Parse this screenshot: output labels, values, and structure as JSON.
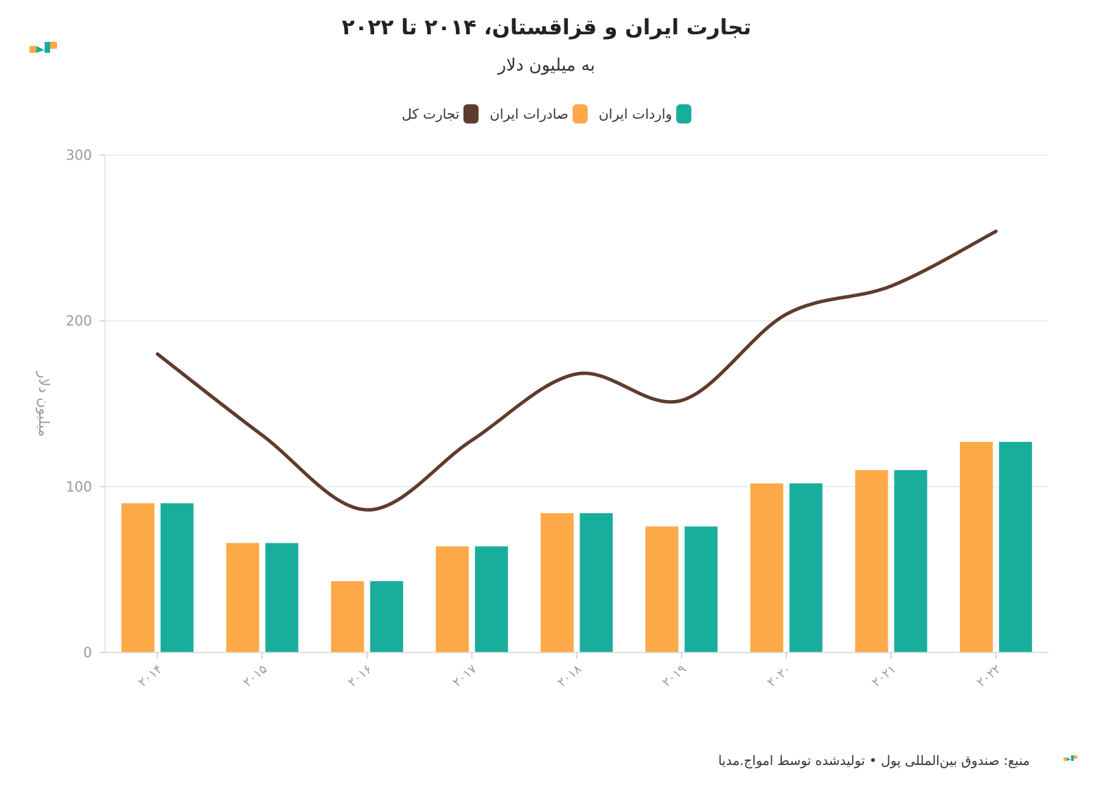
{
  "header": {
    "title": "تجارت ایران و قزاقستان، ۲۰۱۴ تا ۲۰۲۲",
    "subtitle": "به میلیون دلار"
  },
  "legend": [
    {
      "label": "واردات ایران",
      "color": "#19ae9c"
    },
    {
      "label": "صادرات ایران",
      "color": "#fea947"
    },
    {
      "label": "تجارت کل",
      "color": "#5e3c2d"
    }
  ],
  "footer": {
    "source": "منبع: صندوق بین‌المللی پول • تولیدشده توسط امواج.مدیا"
  },
  "chart_data": {
    "type": "bar",
    "categories": [
      "۲۰۱۴",
      "۲۰۱۵",
      "۲۰۱۶",
      "۲۰۱۷",
      "۲۰۱۸",
      "۲۰۱۹",
      "۲۰۲۰",
      "۲۰۲۱",
      "۲۰۲۲"
    ],
    "series": [
      {
        "name": "صادرات ایران",
        "type": "bar",
        "color": "#fea947",
        "values": [
          90,
          66,
          43,
          64,
          84,
          76,
          102,
          110,
          127
        ]
      },
      {
        "name": "واردات ایران",
        "type": "bar",
        "color": "#19ae9c",
        "values": [
          90,
          66,
          43,
          64,
          84,
          76,
          102,
          110,
          127
        ]
      },
      {
        "name": "تجارت کل",
        "type": "line",
        "color": "#5e3c2d",
        "values": [
          180,
          131,
          86,
          128,
          168,
          152,
          204,
          221,
          254
        ]
      }
    ],
    "ylabel": "میلیون دلار",
    "ylim": [
      0,
      300
    ],
    "yticks": [
      0,
      100,
      200,
      300
    ],
    "grid": true,
    "legend_position": "top"
  }
}
